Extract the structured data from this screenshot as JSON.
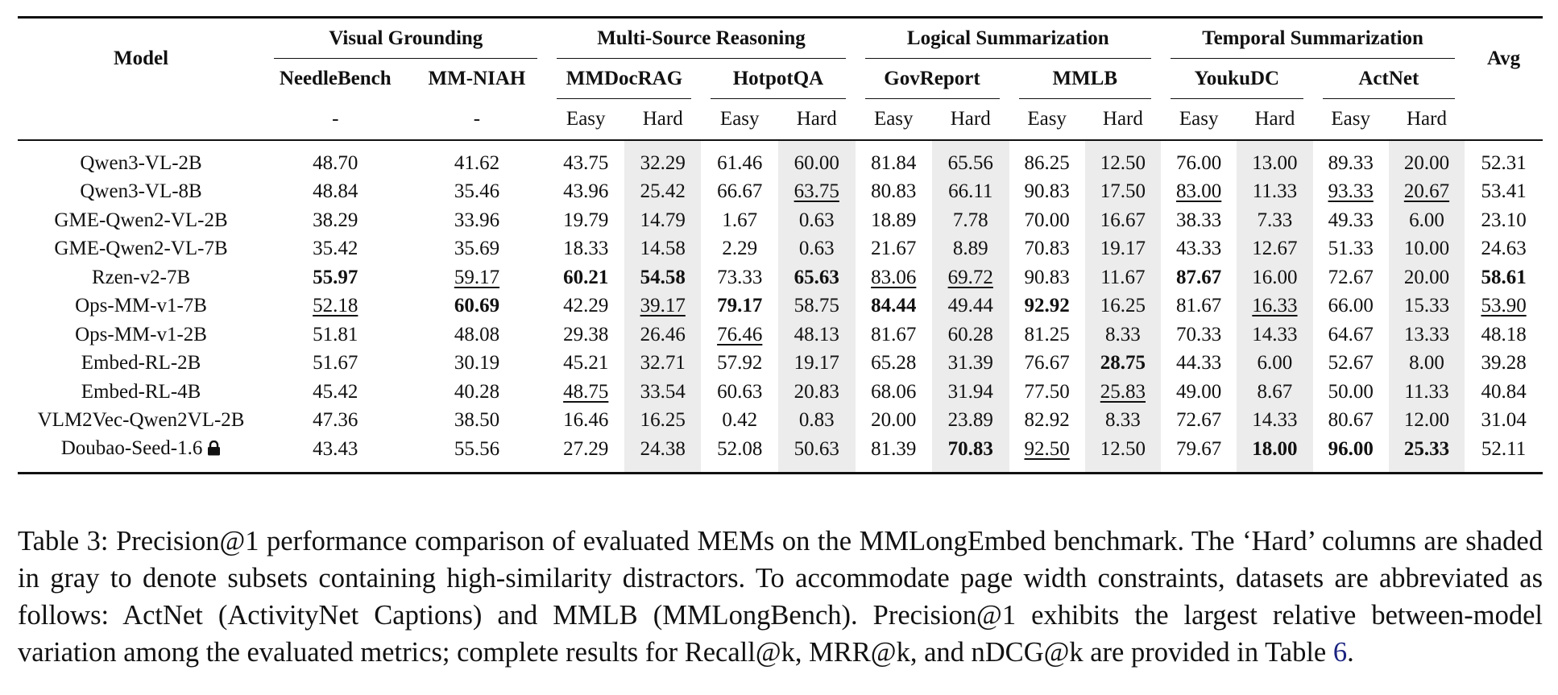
{
  "table": {
    "model_header": "Model",
    "avg_header": "Avg",
    "groups": [
      "Visual Grounding",
      "Multi-Source Reasoning",
      "Logical Summarization",
      "Temporal Summarization"
    ],
    "datasets": [
      "NeedleBench",
      "MM-NIAH",
      "MMDocRAG",
      "HotpotQA",
      "GovReport",
      "MMLB",
      "YoukuDC",
      "ActNet"
    ],
    "difficulty": [
      "-",
      "-",
      "Easy",
      "Hard",
      "Easy",
      "Hard",
      "Easy",
      "Hard",
      "Easy",
      "Hard",
      "Easy",
      "Hard",
      "Easy",
      "Hard"
    ],
    "rows": [
      {
        "model": "Qwen3-VL-2B",
        "values": [
          "48.70",
          "41.62",
          "43.75",
          "32.29",
          "61.46",
          "60.00",
          "81.84",
          "65.56",
          "86.25",
          "12.50",
          "76.00",
          "13.00",
          "89.33",
          "20.00",
          "52.31"
        ],
        "bold": [],
        "underline": []
      },
      {
        "model": "Qwen3-VL-8B",
        "values": [
          "48.84",
          "35.46",
          "43.96",
          "25.42",
          "66.67",
          "63.75",
          "80.83",
          "66.11",
          "90.83",
          "17.50",
          "83.00",
          "11.33",
          "93.33",
          "20.67",
          "53.41"
        ],
        "bold": [],
        "underline": [
          5,
          10,
          12,
          13
        ]
      },
      {
        "model": "GME-Qwen2-VL-2B",
        "values": [
          "38.29",
          "33.96",
          "19.79",
          "14.79",
          "1.67",
          "0.63",
          "18.89",
          "7.78",
          "70.00",
          "16.67",
          "38.33",
          "7.33",
          "49.33",
          "6.00",
          "23.10"
        ],
        "bold": [],
        "underline": []
      },
      {
        "model": "GME-Qwen2-VL-7B",
        "values": [
          "35.42",
          "35.69",
          "18.33",
          "14.58",
          "2.29",
          "0.63",
          "21.67",
          "8.89",
          "70.83",
          "19.17",
          "43.33",
          "12.67",
          "51.33",
          "10.00",
          "24.63"
        ],
        "bold": [],
        "underline": []
      },
      {
        "model": "Rzen-v2-7B",
        "values": [
          "55.97",
          "59.17",
          "60.21",
          "54.58",
          "73.33",
          "65.63",
          "83.06",
          "69.72",
          "90.83",
          "11.67",
          "87.67",
          "16.00",
          "72.67",
          "20.00",
          "58.61"
        ],
        "bold": [
          0,
          2,
          3,
          5,
          10,
          14
        ],
        "underline": [
          1,
          6,
          7
        ]
      },
      {
        "model": "Ops-MM-v1-7B",
        "values": [
          "52.18",
          "60.69",
          "42.29",
          "39.17",
          "79.17",
          "58.75",
          "84.44",
          "49.44",
          "92.92",
          "16.25",
          "81.67",
          "16.33",
          "66.00",
          "15.33",
          "53.90"
        ],
        "bold": [
          1,
          4,
          6,
          8
        ],
        "underline": [
          0,
          3,
          11,
          14
        ]
      },
      {
        "model": "Ops-MM-v1-2B",
        "values": [
          "51.81",
          "48.08",
          "29.38",
          "26.46",
          "76.46",
          "48.13",
          "81.67",
          "60.28",
          "81.25",
          "8.33",
          "70.33",
          "14.33",
          "64.67",
          "13.33",
          "48.18"
        ],
        "bold": [],
        "underline": [
          4
        ]
      },
      {
        "model": "Embed-RL-2B",
        "values": [
          "51.67",
          "30.19",
          "45.21",
          "32.71",
          "57.92",
          "19.17",
          "65.28",
          "31.39",
          "76.67",
          "28.75",
          "44.33",
          "6.00",
          "52.67",
          "8.00",
          "39.28"
        ],
        "bold": [
          9
        ],
        "underline": []
      },
      {
        "model": "Embed-RL-4B",
        "values": [
          "45.42",
          "40.28",
          "48.75",
          "33.54",
          "60.63",
          "20.83",
          "68.06",
          "31.94",
          "77.50",
          "25.83",
          "49.00",
          "8.67",
          "50.00",
          "11.33",
          "40.84"
        ],
        "bold": [],
        "underline": [
          2,
          9
        ]
      },
      {
        "model": "VLM2Vec-Qwen2VL-2B",
        "values": [
          "47.36",
          "38.50",
          "16.46",
          "16.25",
          "0.42",
          "0.83",
          "20.00",
          "23.89",
          "82.92",
          "8.33",
          "72.67",
          "14.33",
          "80.67",
          "12.00",
          "31.04"
        ],
        "bold": [],
        "underline": []
      },
      {
        "model": "Doubao-Seed-1.6",
        "locked": true,
        "values": [
          "43.43",
          "55.56",
          "27.29",
          "24.38",
          "52.08",
          "50.63",
          "81.39",
          "70.83",
          "92.50",
          "12.50",
          "79.67",
          "18.00",
          "96.00",
          "25.33",
          "52.11"
        ],
        "bold": [
          7,
          11,
          12,
          13
        ],
        "underline": [
          8
        ]
      }
    ]
  },
  "caption": {
    "text": "Table 3: Precision@1 performance comparison of evaluated MEMs on the MMLongEmbed benchmark. The ‘Hard’ columns are shaded in gray to denote subsets containing high-similarity distractors. To accommodate page width constraints, datasets are abbreviated as follows: ActNet (ActivityNet Captions) and MMLB (MMLongBench). Precision@1 exhibits the largest relative between-model variation among the evaluated metrics; complete results for Recall@k, MRR@k, and nDCG@k are provided in Table ",
    "ref": "6",
    "end": "."
  },
  "icons": {
    "proprietary": "lock-icon"
  }
}
